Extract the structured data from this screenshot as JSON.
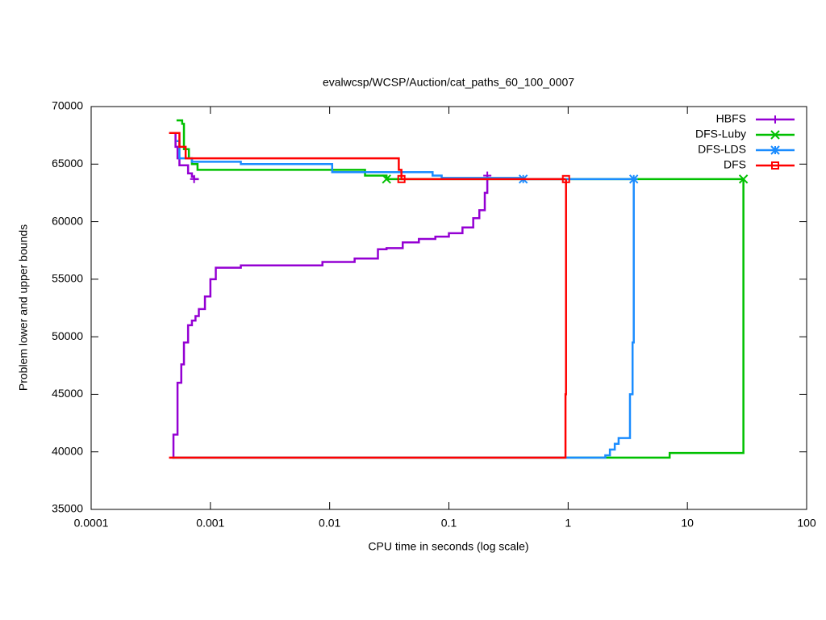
{
  "chart_data": {
    "type": "line",
    "steps": true,
    "title": "evalwcsp/WCSP/Auction/cat_paths_60_100_0007",
    "x_label": "CPU time in seconds (log scale)",
    "y_label": "Problem lower and upper bounds",
    "xscale": "log",
    "xlim": [
      0.0001,
      100
    ],
    "xticks": [
      0.0001,
      0.001,
      0.01,
      0.1,
      1,
      10,
      100
    ],
    "ylim": [
      35000,
      70000
    ],
    "yticks": [
      35000,
      40000,
      45000,
      50000,
      55000,
      60000,
      65000,
      70000
    ],
    "legend": "top-right",
    "series": [
      {
        "name": "HBFS",
        "color": "#9400d3",
        "marker": "plus",
        "x": [
          0.00048,
          0.00051,
          0.00053,
          0.00055,
          0.00065,
          0.00065,
          0.0007,
          0.00073,
          0.0008,
          null,
          0.00048,
          0.00049,
          0.00053,
          0.00057,
          0.0006,
          0.00065,
          0.0007,
          0.00075,
          0.0008,
          0.0009,
          0.001,
          0.00111,
          0.0018,
          0.0087,
          0.0162,
          0.0254,
          0.03,
          0.041,
          0.056,
          0.077,
          0.1,
          0.13,
          0.16,
          0.18,
          0.2,
          0.21
        ],
        "values": [
          67700,
          66500,
          65500,
          64900,
          64900,
          64200,
          63900,
          63700,
          63700,
          null,
          39500,
          41500,
          46000,
          47600,
          49500,
          51000,
          51400,
          51800,
          52400,
          53500,
          55000,
          56000,
          56200,
          56500,
          56800,
          57600,
          57700,
          58200,
          58500,
          58700,
          59000,
          59500,
          60300,
          61000,
          62500,
          64000
        ]
      },
      {
        "name": "DFS-Luby",
        "color": "#00c000",
        "marker": "cross",
        "x": [
          0.00052,
          0.00058,
          0.0006,
          0.00066,
          0.0007,
          0.00078,
          0.0198,
          0.03,
          29.5,
          null,
          0.00048,
          7.1,
          29.5
        ],
        "values": [
          68800,
          68500,
          66300,
          65500,
          65000,
          64500,
          64000,
          63700,
          63700,
          null,
          39500,
          39900,
          63700
        ]
      },
      {
        "name": "DFS-LDS",
        "color": "#1a8cff",
        "marker": "star",
        "x": [
          0.00052,
          0.00055,
          0.0007,
          0.0018,
          0.0105,
          0.073,
          0.087,
          0.42,
          3.55,
          null,
          0.00048,
          2.05,
          2.24,
          2.46,
          2.65,
          3.3,
          3.47,
          3.55
        ],
        "values": [
          67000,
          65500,
          65200,
          65000,
          64300,
          64000,
          63800,
          63700,
          63700,
          null,
          39500,
          39700,
          40200,
          40700,
          41200,
          45000,
          49500,
          63700
        ]
      },
      {
        "name": "DFS",
        "color": "#ff0000",
        "marker": "square",
        "x": [
          0.00045,
          0.00055,
          0.00062,
          0.035,
          0.038,
          0.04,
          0.95,
          null,
          0.00045,
          0.95,
          0.96
        ],
        "values": [
          67700,
          66500,
          65500,
          65500,
          64500,
          63700,
          63700,
          null,
          39500,
          45000,
          63700
        ]
      }
    ]
  }
}
